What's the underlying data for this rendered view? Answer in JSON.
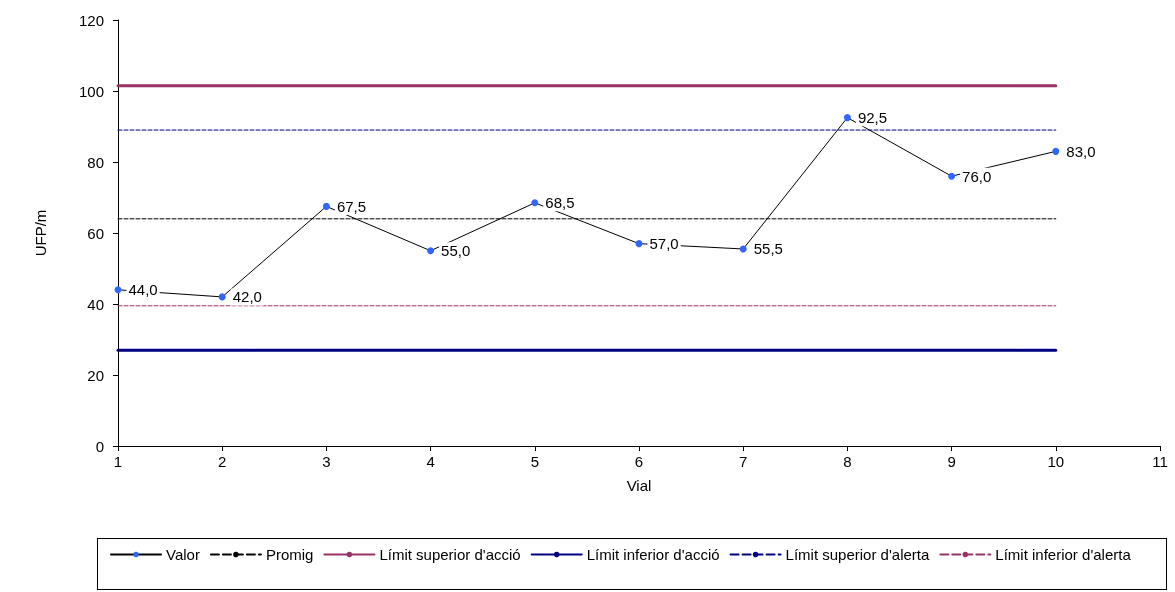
{
  "chart_data": {
    "type": "line",
    "xlabel": "Vial",
    "ylabel": "UFP/m",
    "xlim": [
      1,
      11
    ],
    "xticks": [
      1,
      2,
      3,
      4,
      5,
      6,
      7,
      8,
      9,
      10,
      11
    ],
    "ylim": [
      0,
      120
    ],
    "yticks": [
      0,
      20,
      40,
      60,
      80,
      100,
      120
    ],
    "grid": false,
    "legend": "bottom",
    "series": [
      {
        "name": "Valor",
        "color": "#3366ff",
        "marker": "circle",
        "line_style": "solid",
        "x": [
          1,
          2,
          3,
          4,
          5,
          6,
          7,
          8,
          9,
          10
        ],
        "values": [
          44.0,
          42.0,
          67.5,
          55.0,
          68.5,
          57.0,
          55.5,
          92.5,
          76.0,
          83.0
        ],
        "value_labels": [
          "44,0",
          "42,0",
          "67,5",
          "55,0",
          "68,5",
          "57,0",
          "55,5",
          "92,5",
          "76,0",
          "83,0"
        ]
      },
      {
        "name": "Promig",
        "color": "#000000",
        "marker": "none",
        "line_style": "dashed",
        "x": [
          1,
          10
        ],
        "values": [
          64,
          64
        ]
      },
      {
        "name": "Límit superior d'acció",
        "color": "#993366",
        "marker": "none",
        "line_style": "solid",
        "x": [
          1,
          10
        ],
        "values": [
          101.5,
          101.5
        ]
      },
      {
        "name": "Límit inferior d'acció",
        "color": "#000080",
        "marker": "none",
        "line_style": "solid",
        "x": [
          1,
          10
        ],
        "values": [
          27,
          27
        ]
      },
      {
        "name": "Límit superior d'alerta",
        "color": "#000080",
        "marker": "none",
        "line_style": "dashed",
        "x": [
          1,
          10
        ],
        "values": [
          89,
          89
        ]
      },
      {
        "name": "Límit inferior d'alerta",
        "color": "#993366",
        "marker": "none",
        "line_style": "dashed",
        "x": [
          1,
          10
        ],
        "values": [
          39.5,
          39.5
        ]
      }
    ]
  }
}
